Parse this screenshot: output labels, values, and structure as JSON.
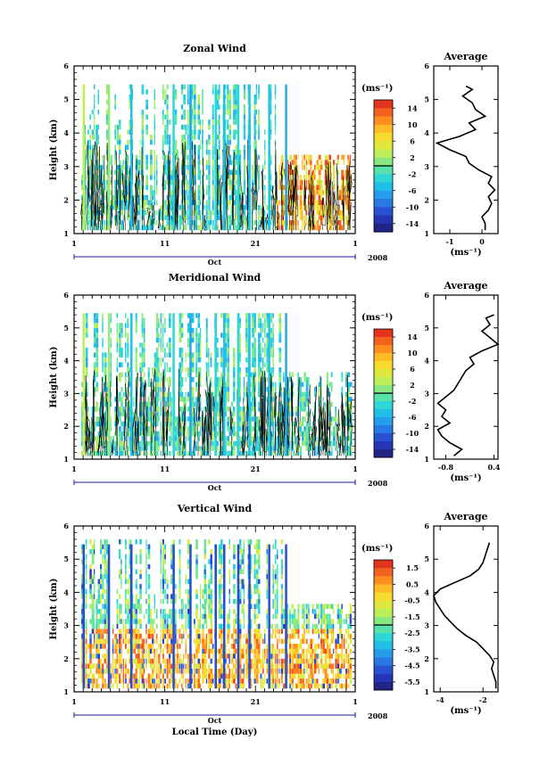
{
  "chart_data": [
    {
      "type": "heatmap",
      "title": "Zonal Wind",
      "ylabel": "Height (km)",
      "ylim": [
        1,
        6
      ],
      "yticks": [
        "1",
        "2",
        "3",
        "4",
        "5",
        "6"
      ],
      "xticks": [
        "1",
        "11",
        "21",
        "1"
      ],
      "month_label": "Oct",
      "year_label": "2008",
      "colorbar_unit": "(ms⁻¹)",
      "colorbar_ticks": [
        "14",
        "10",
        "6",
        "2",
        "-2",
        "-6",
        "-10",
        "-14"
      ],
      "colorbar_range": [
        -16,
        16
      ],
      "average": {
        "title": "Average",
        "xticks": [
          "-1",
          "0"
        ],
        "xlim": [
          -1.5,
          0.5
        ],
        "xlabel": "(ms⁻¹)",
        "heights": [
          1.1,
          1.3,
          1.5,
          1.7,
          1.9,
          2.1,
          2.3,
          2.5,
          2.7,
          2.9,
          3.1,
          3.3,
          3.5,
          3.7,
          3.9,
          4.1,
          4.3,
          4.5,
          4.7,
          4.9,
          5.1,
          5.3,
          5.4
        ],
        "values": [
          0.1,
          0.1,
          0.0,
          0.2,
          0.3,
          0.2,
          0.4,
          0.2,
          0.3,
          -0.1,
          -0.4,
          -0.5,
          -1.0,
          -1.4,
          -0.7,
          -0.2,
          -0.4,
          0.1,
          -0.2,
          -0.3,
          -0.6,
          -0.3,
          -0.5
        ]
      }
    },
    {
      "type": "heatmap",
      "title": "Meridional Wind",
      "ylabel": "Height (km)",
      "ylim": [
        1,
        6
      ],
      "yticks": [
        "1",
        "2",
        "3",
        "4",
        "5",
        "6"
      ],
      "xticks": [
        "1",
        "11",
        "21",
        "1"
      ],
      "month_label": "Oct",
      "year_label": "2008",
      "colorbar_unit": "(ms⁻¹)",
      "colorbar_ticks": [
        "14",
        "10",
        "6",
        "2",
        "-2",
        "-6",
        "-10",
        "-14"
      ],
      "colorbar_range": [
        -16,
        16
      ],
      "average": {
        "title": "Average",
        "xticks": [
          "-0.8",
          "0.4"
        ],
        "xlim": [
          -1.1,
          0.5
        ],
        "xlabel": "(ms⁻¹)",
        "heights": [
          1.1,
          1.3,
          1.5,
          1.7,
          1.9,
          2.1,
          2.3,
          2.5,
          2.7,
          2.9,
          3.1,
          3.3,
          3.5,
          3.7,
          3.9,
          4.1,
          4.3,
          4.5,
          4.7,
          4.9,
          5.1,
          5.3,
          5.4
        ],
        "values": [
          -0.6,
          -0.4,
          -0.7,
          -0.9,
          -1.0,
          -0.7,
          -0.9,
          -0.8,
          -1.0,
          -0.8,
          -0.6,
          -0.5,
          -0.4,
          -0.3,
          -0.1,
          -0.2,
          0.1,
          0.5,
          0.3,
          0.1,
          0.3,
          0.2,
          0.4
        ]
      }
    },
    {
      "type": "heatmap",
      "title": "Vertical Wind",
      "ylabel": "Height (km)",
      "ylim": [
        1,
        6
      ],
      "yticks": [
        "1",
        "2",
        "3",
        "4",
        "5",
        "6"
      ],
      "xticks": [
        "1",
        "11",
        "21",
        "1"
      ],
      "xlabel": "Local Time (Day)",
      "month_label": "Oct",
      "year_label": "2008",
      "colorbar_unit": "(ms⁻¹)",
      "colorbar_ticks": [
        "1.5",
        "0.5",
        "-0.5",
        "-1.5",
        "-2.5",
        "-3.5",
        "-4.5",
        "-5.5"
      ],
      "colorbar_range": [
        -6,
        2
      ],
      "average": {
        "title": "Average",
        "xticks": [
          "-4",
          "-2"
        ],
        "xlim": [
          -4.3,
          -1.3
        ],
        "xlabel": "(ms⁻¹)",
        "heights": [
          1.1,
          1.3,
          1.5,
          1.7,
          1.9,
          2.1,
          2.3,
          2.5,
          2.7,
          2.9,
          3.1,
          3.3,
          3.5,
          3.7,
          3.9,
          4.1,
          4.3,
          4.5,
          4.7,
          4.9,
          5.1,
          5.3,
          5.5
        ],
        "values": [
          -1.4,
          -1.4,
          -1.5,
          -1.6,
          -1.5,
          -1.7,
          -2.0,
          -2.3,
          -2.8,
          -3.2,
          -3.5,
          -3.8,
          -4.0,
          -4.2,
          -4.3,
          -4.0,
          -3.3,
          -2.6,
          -2.2,
          -2.0,
          -1.9,
          -1.8,
          -1.7
        ]
      }
    }
  ]
}
